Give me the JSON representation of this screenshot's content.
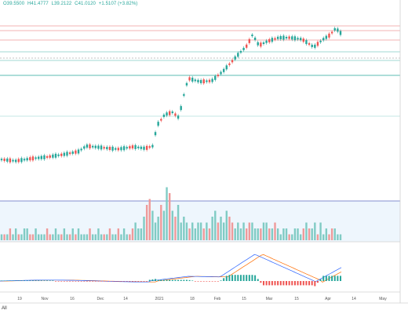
{
  "ohlc": {
    "open": "O39.5500",
    "high": "H41.4777",
    "low": "L39.2122",
    "close": "C41.0120",
    "change": "+1.5107 (+3.82%)"
  },
  "x_axis_labels": [
    "19",
    "Nov",
    "16",
    "Dec",
    "14",
    "2021",
    "18",
    "Feb",
    "15",
    "Mar",
    "15",
    "Apr",
    "14",
    "May"
  ],
  "range_selector": "All",
  "colors": {
    "up": "#26a69a",
    "down": "#ef5350",
    "macd_line": "#2962ff",
    "signal_line": "#ff6d00",
    "resistance": "#ef9a9a",
    "support": "#80cbc4"
  },
  "chart_data": {
    "type": "candlestick",
    "title": "",
    "volume_relative": [
      1,
      1,
      1,
      2,
      1,
      2,
      1,
      1,
      2,
      2,
      1,
      1,
      2,
      1,
      1,
      1,
      2,
      1,
      1,
      2,
      1,
      1,
      2,
      1,
      1,
      2,
      1,
      2,
      1,
      1,
      1,
      2,
      1,
      1,
      2,
      1,
      1,
      1,
      2,
      1,
      1,
      2,
      1,
      2,
      1,
      1,
      2,
      3,
      2,
      2,
      4,
      6,
      7,
      5,
      3,
      4,
      6,
      5,
      9,
      8,
      5,
      4,
      6,
      3,
      4,
      3,
      2,
      3,
      2,
      3,
      3,
      2,
      3,
      2,
      4,
      5,
      3,
      4,
      3,
      5,
      4,
      3,
      2,
      3,
      2,
      3,
      2,
      3,
      3,
      2,
      2,
      2,
      3,
      3,
      2,
      2,
      3,
      2,
      1,
      2,
      2,
      1,
      1,
      2,
      2,
      1,
      2,
      3,
      2,
      2,
      3,
      1,
      3,
      1,
      2,
      1,
      2,
      2,
      1,
      1
    ]
  }
}
